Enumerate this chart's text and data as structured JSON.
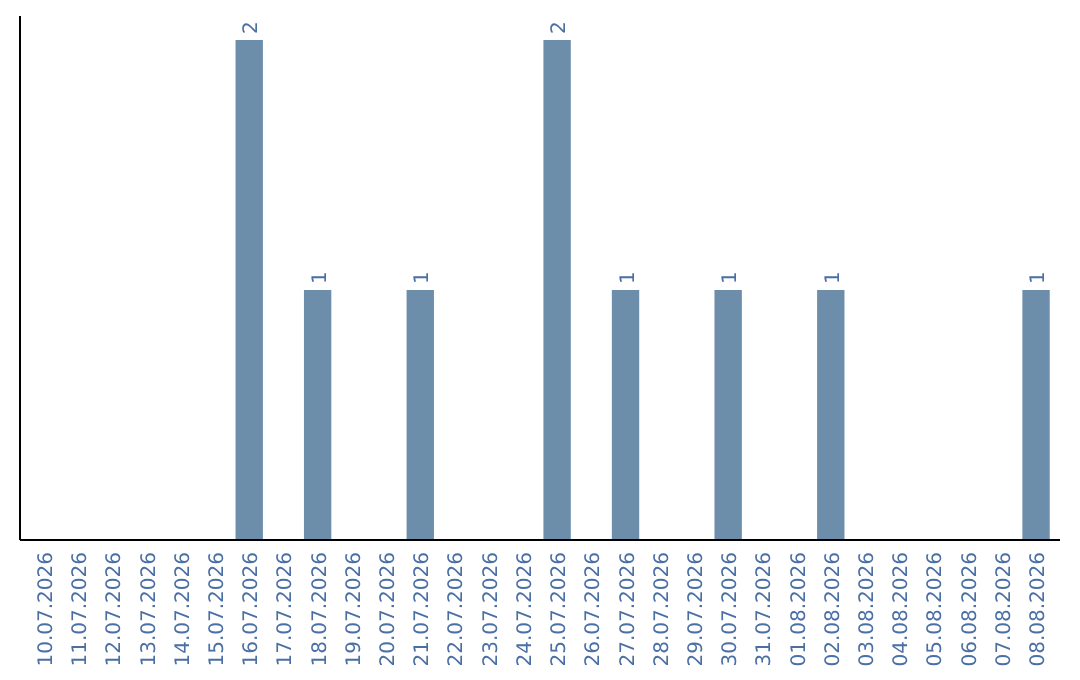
{
  "chart_data": {
    "type": "bar",
    "categories": [
      "10.07.2026",
      "11.07.2026",
      "12.07.2026",
      "13.07.2026",
      "14.07.2026",
      "15.07.2026",
      "16.07.2026",
      "17.07.2026",
      "18.07.2026",
      "19.07.2026",
      "20.07.2026",
      "21.07.2026",
      "22.07.2026",
      "23.07.2026",
      "24.07.2026",
      "25.07.2026",
      "26.07.2026",
      "27.07.2026",
      "28.07.2026",
      "29.07.2026",
      "30.07.2026",
      "31.07.2026",
      "01.08.2026",
      "02.08.2026",
      "03.08.2026",
      "04.08.2026",
      "05.08.2026",
      "06.08.2026",
      "07.08.2026",
      "08.08.2026"
    ],
    "values": [
      0,
      0,
      0,
      0,
      0,
      0,
      2,
      0,
      1,
      0,
      0,
      1,
      0,
      0,
      0,
      2,
      0,
      1,
      0,
      0,
      1,
      0,
      0,
      1,
      0,
      0,
      0,
      0,
      0,
      1
    ],
    "value_labels": [
      null,
      null,
      null,
      null,
      null,
      null,
      "2",
      null,
      "1",
      null,
      null,
      "1",
      null,
      null,
      null,
      "2",
      null,
      "1",
      null,
      null,
      "1",
      null,
      null,
      "1",
      null,
      null,
      null,
      null,
      null,
      "1"
    ],
    "color": "#6d8eab",
    "tick_labels": "x"
  }
}
